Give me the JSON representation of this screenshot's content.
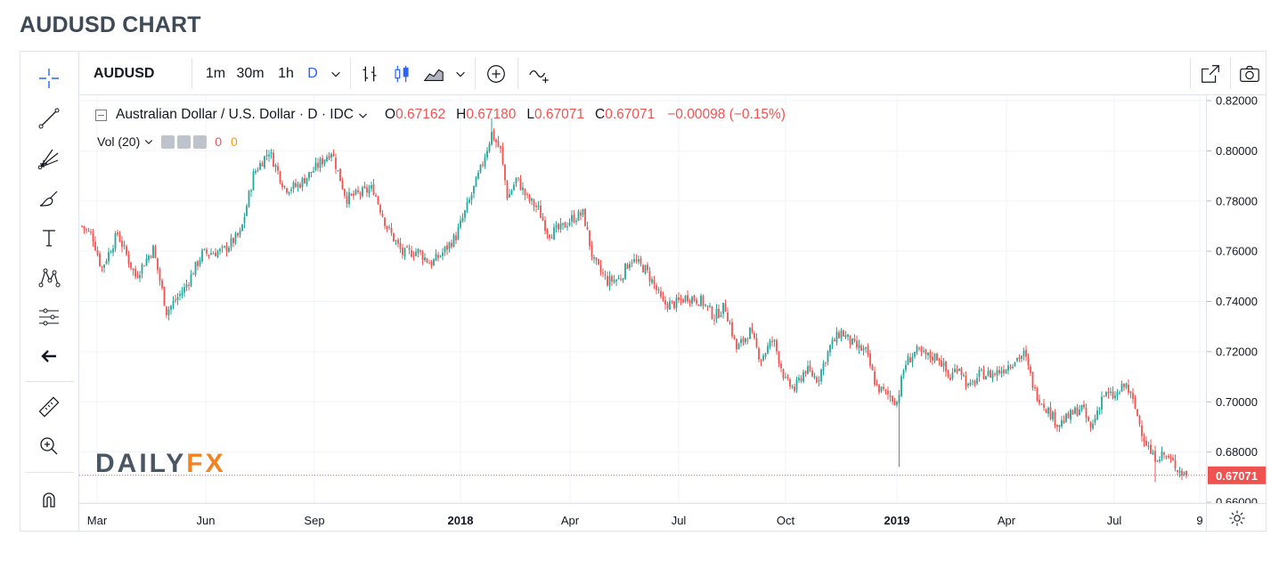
{
  "page_title": "AUDUSD CHART",
  "toolbar": {
    "symbol": "AUDUSD",
    "intervals": [
      "1m",
      "30m",
      "1h",
      "D"
    ],
    "active_interval": "D"
  },
  "legend": {
    "name": "Australian Dollar / U.S. Dollar · D · IDC",
    "open_label": "O",
    "open": "0.67162",
    "high_label": "H",
    "high": "0.67180",
    "low_label": "L",
    "low": "0.67071",
    "close_label": "C",
    "close": "0.67071",
    "change": "−0.00098 (−0.15%)",
    "vol_label": "Vol (20)",
    "vol_value_1": "0",
    "vol_value_2": "0"
  },
  "logo": {
    "part1": "DAILY",
    "part2": "FX"
  },
  "colors": {
    "up": "#26a69a",
    "down": "#ef5350",
    "last_price_badge": "#ef5350",
    "accent": "#2962ff",
    "logo_orange": "#f58220"
  },
  "chart_data": {
    "type": "candlestick",
    "symbol": "AUDUSD",
    "title": "Australian Dollar / U.S. Dollar",
    "interval": "D",
    "last_price": "0.67071",
    "y_ticks": [
      "0.82000",
      "0.80000",
      "0.78000",
      "0.76000",
      "0.74000",
      "0.72000",
      "0.70000",
      "0.68000",
      "0.66000"
    ],
    "y_range": [
      0.66,
      0.82
    ],
    "x_ticks": [
      {
        "label": "Mar",
        "bold": false
      },
      {
        "label": "Jun",
        "bold": false
      },
      {
        "label": "Sep",
        "bold": false
      },
      {
        "label": "2018",
        "bold": true
      },
      {
        "label": "Apr",
        "bold": false
      },
      {
        "label": "Jul",
        "bold": false
      },
      {
        "label": "Oct",
        "bold": false
      },
      {
        "label": "2019",
        "bold": true
      },
      {
        "label": "Apr",
        "bold": false
      },
      {
        "label": "Jul",
        "bold": false
      },
      {
        "label": "9",
        "bold": false
      }
    ],
    "price_path": [
      [
        0,
        0.77
      ],
      [
        12,
        0.766
      ],
      [
        22,
        0.753
      ],
      [
        40,
        0.767
      ],
      [
        60,
        0.75
      ],
      [
        80,
        0.761
      ],
      [
        95,
        0.736
      ],
      [
        115,
        0.745
      ],
      [
        135,
        0.759
      ],
      [
        158,
        0.76
      ],
      [
        178,
        0.767
      ],
      [
        193,
        0.791
      ],
      [
        210,
        0.8
      ],
      [
        228,
        0.785
      ],
      [
        242,
        0.786
      ],
      [
        262,
        0.793
      ],
      [
        280,
        0.8
      ],
      [
        297,
        0.781
      ],
      [
        312,
        0.783
      ],
      [
        327,
        0.785
      ],
      [
        342,
        0.77
      ],
      [
        360,
        0.759
      ],
      [
        377,
        0.76
      ],
      [
        392,
        0.755
      ],
      [
        404,
        0.759
      ],
      [
        420,
        0.766
      ],
      [
        436,
        0.781
      ],
      [
        448,
        0.793
      ],
      [
        460,
        0.807
      ],
      [
        470,
        0.8
      ],
      [
        478,
        0.781
      ],
      [
        488,
        0.789
      ],
      [
        500,
        0.781
      ],
      [
        512,
        0.777
      ],
      [
        524,
        0.767
      ],
      [
        538,
        0.769
      ],
      [
        550,
        0.773
      ],
      [
        563,
        0.775
      ],
      [
        574,
        0.756
      ],
      [
        590,
        0.748
      ],
      [
        604,
        0.749
      ],
      [
        616,
        0.757
      ],
      [
        632,
        0.753
      ],
      [
        642,
        0.747
      ],
      [
        652,
        0.739
      ],
      [
        666,
        0.739
      ],
      [
        680,
        0.742
      ],
      [
        696,
        0.74
      ],
      [
        710,
        0.734
      ],
      [
        722,
        0.738
      ],
      [
        735,
        0.721
      ],
      [
        750,
        0.728
      ],
      [
        762,
        0.717
      ],
      [
        776,
        0.725
      ],
      [
        790,
        0.708
      ],
      [
        800,
        0.705
      ],
      [
        812,
        0.713
      ],
      [
        826,
        0.709
      ],
      [
        840,
        0.722
      ],
      [
        852,
        0.728
      ],
      [
        868,
        0.722
      ],
      [
        880,
        0.72
      ],
      [
        892,
        0.706
      ],
      [
        904,
        0.703
      ],
      [
        915,
        0.7
      ],
      [
        924,
        0.715
      ],
      [
        936,
        0.72
      ],
      [
        950,
        0.718
      ],
      [
        962,
        0.718
      ],
      [
        974,
        0.709
      ],
      [
        984,
        0.715
      ],
      [
        996,
        0.705
      ],
      [
        1008,
        0.711
      ],
      [
        1022,
        0.711
      ],
      [
        1034,
        0.713
      ],
      [
        1048,
        0.717
      ],
      [
        1058,
        0.719
      ],
      [
        1070,
        0.704
      ],
      [
        1082,
        0.698
      ],
      [
        1096,
        0.691
      ],
      [
        1108,
        0.694
      ],
      [
        1122,
        0.698
      ],
      [
        1133,
        0.689
      ],
      [
        1146,
        0.703
      ],
      [
        1160,
        0.702
      ],
      [
        1172,
        0.707
      ],
      [
        1182,
        0.698
      ],
      [
        1192,
        0.686
      ],
      [
        1202,
        0.678
      ],
      [
        1214,
        0.679
      ],
      [
        1224,
        0.676
      ],
      [
        1234,
        0.672
      ],
      [
        1240,
        0.671
      ]
    ]
  }
}
